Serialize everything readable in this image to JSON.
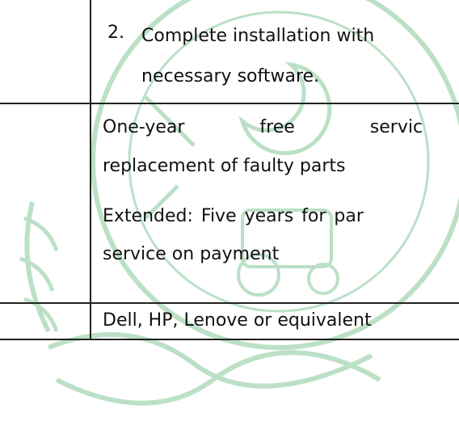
{
  "rows": [
    {
      "number": "2.",
      "lines": [
        "Complete installation with",
        "necessary software."
      ]
    },
    {
      "lines": [
        "One-year free servic",
        "replacement of faulty parts",
        "Extended: Five years for par",
        "service on payment"
      ]
    },
    {
      "lines": [
        "Dell, HP, Lenove or equivalent"
      ]
    }
  ]
}
